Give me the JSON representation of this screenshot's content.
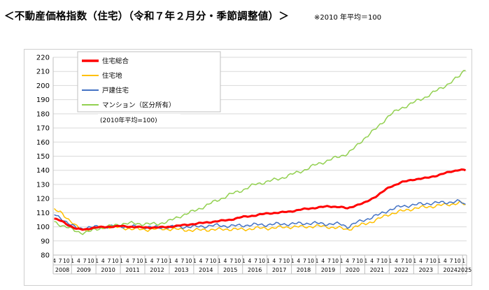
{
  "header": {
    "title": "＜不動産価格指数（住宅）（令和７年２月分・季節調整値）＞",
    "note": "※2010 年平均＝100"
  },
  "chart_data": {
    "type": "line",
    "inner_note": "(2010年平均=100)",
    "y_ticks": [
      "80",
      "90",
      "100",
      "110",
      "120",
      "130",
      "140",
      "150",
      "160",
      "170",
      "180",
      "190",
      "200",
      "210",
      "220"
    ],
    "ylim": [
      80,
      220
    ],
    "grid": "horizontal",
    "legend_position": "top-left",
    "month_tick_labels": [
      "4",
      "7",
      "10",
      "1"
    ],
    "x_year_labels": [
      "2008",
      "2009",
      "2010",
      "2011",
      "2012",
      "2013",
      "2014",
      "2015",
      "2016",
      "2017",
      "2018",
      "2019",
      "2020",
      "2021",
      "2022",
      "2023",
      "2024",
      "2025"
    ],
    "x_start": "2008-04",
    "x_end": "2025-02",
    "series": [
      {
        "name": "住宅総合",
        "color": "#ff0000",
        "width": 3.0,
        "keypoints": [
          [
            2008.25,
            106
          ],
          [
            2008.6,
            104
          ],
          [
            2008.9,
            101
          ],
          [
            2009.2,
            98.5
          ],
          [
            2009.5,
            98
          ],
          [
            2009.8,
            99
          ],
          [
            2010.0,
            99.5
          ],
          [
            2010.5,
            100
          ],
          [
            2011.0,
            100.5
          ],
          [
            2011.5,
            100
          ],
          [
            2012.0,
            99.5
          ],
          [
            2012.5,
            99.5
          ],
          [
            2013.0,
            100
          ],
          [
            2013.5,
            101
          ],
          [
            2014.0,
            102
          ],
          [
            2014.5,
            103
          ],
          [
            2015.0,
            104
          ],
          [
            2015.5,
            105
          ],
          [
            2016.0,
            107
          ],
          [
            2016.5,
            108
          ],
          [
            2017.0,
            109.5
          ],
          [
            2017.5,
            110
          ],
          [
            2018.0,
            111
          ],
          [
            2018.5,
            112.5
          ],
          [
            2019.0,
            113.5
          ],
          [
            2019.5,
            114.5
          ],
          [
            2020.0,
            114
          ],
          [
            2020.3,
            113
          ],
          [
            2020.6,
            115
          ],
          [
            2021.0,
            117
          ],
          [
            2021.5,
            122
          ],
          [
            2022.0,
            128
          ],
          [
            2022.5,
            131.5
          ],
          [
            2023.0,
            133.5
          ],
          [
            2023.5,
            134.5
          ],
          [
            2024.0,
            136.5
          ],
          [
            2024.5,
            139
          ],
          [
            2024.9,
            140.5
          ],
          [
            2025.1,
            140
          ]
        ]
      },
      {
        "name": "住宅地",
        "color": "#ffc000",
        "width": 1.5,
        "keypoints": [
          [
            2008.25,
            112
          ],
          [
            2008.6,
            110
          ],
          [
            2008.9,
            105
          ],
          [
            2009.2,
            100
          ],
          [
            2009.5,
            98
          ],
          [
            2009.8,
            98.5
          ],
          [
            2010.0,
            99
          ],
          [
            2010.5,
            100
          ],
          [
            2011.0,
            99.5
          ],
          [
            2011.5,
            98.5
          ],
          [
            2012.0,
            98
          ],
          [
            2012.5,
            98.5
          ],
          [
            2013.0,
            98.5
          ],
          [
            2013.5,
            98
          ],
          [
            2014.0,
            97.5
          ],
          [
            2014.5,
            98
          ],
          [
            2015.0,
            98
          ],
          [
            2015.5,
            98.5
          ],
          [
            2016.0,
            98
          ],
          [
            2016.5,
            99
          ],
          [
            2017.0,
            99
          ],
          [
            2017.5,
            99.5
          ],
          [
            2018.0,
            100
          ],
          [
            2018.5,
            100
          ],
          [
            2019.0,
            100.5
          ],
          [
            2019.5,
            100
          ],
          [
            2020.0,
            99
          ],
          [
            2020.3,
            98
          ],
          [
            2020.6,
            100
          ],
          [
            2021.0,
            102
          ],
          [
            2021.5,
            105
          ],
          [
            2022.0,
            109
          ],
          [
            2022.5,
            111
          ],
          [
            2023.0,
            113
          ],
          [
            2023.5,
            114
          ],
          [
            2024.0,
            115
          ],
          [
            2024.5,
            116
          ],
          [
            2024.9,
            117
          ],
          [
            2025.1,
            115.5
          ]
        ]
      },
      {
        "name": "戸建住宅",
        "color": "#4472c4",
        "width": 1.5,
        "keypoints": [
          [
            2008.25,
            109
          ],
          [
            2008.6,
            106
          ],
          [
            2008.9,
            102
          ],
          [
            2009.2,
            99
          ],
          [
            2009.5,
            99
          ],
          [
            2009.8,
            99.5
          ],
          [
            2010.0,
            100
          ],
          [
            2010.5,
            100
          ],
          [
            2011.0,
            100.5
          ],
          [
            2011.5,
            100
          ],
          [
            2012.0,
            100
          ],
          [
            2012.5,
            99.5
          ],
          [
            2013.0,
            100
          ],
          [
            2013.5,
            100
          ],
          [
            2014.0,
            100
          ],
          [
            2014.5,
            100.5
          ],
          [
            2015.0,
            101
          ],
          [
            2015.5,
            100.5
          ],
          [
            2016.0,
            101
          ],
          [
            2016.5,
            101.5
          ],
          [
            2017.0,
            101.5
          ],
          [
            2017.5,
            102
          ],
          [
            2018.0,
            102
          ],
          [
            2018.5,
            102.5
          ],
          [
            2019.0,
            102.5
          ],
          [
            2019.5,
            102
          ],
          [
            2020.0,
            102
          ],
          [
            2020.3,
            100
          ],
          [
            2020.6,
            102.5
          ],
          [
            2021.0,
            105
          ],
          [
            2021.5,
            108
          ],
          [
            2022.0,
            112
          ],
          [
            2022.5,
            114.5
          ],
          [
            2023.0,
            115.5
          ],
          [
            2023.5,
            116.5
          ],
          [
            2024.0,
            117
          ],
          [
            2024.5,
            117.5
          ],
          [
            2024.9,
            118
          ],
          [
            2025.1,
            115.5
          ]
        ]
      },
      {
        "name": "マンション（区分所有）",
        "color": "#92d050",
        "width": 1.5,
        "keypoints": [
          [
            2008.25,
            104
          ],
          [
            2008.6,
            101
          ],
          [
            2008.9,
            99
          ],
          [
            2009.2,
            97
          ],
          [
            2009.5,
            95.5
          ],
          [
            2009.8,
            97
          ],
          [
            2010.0,
            98.5
          ],
          [
            2010.5,
            100
          ],
          [
            2011.0,
            102
          ],
          [
            2011.5,
            102.5
          ],
          [
            2012.0,
            102
          ],
          [
            2012.5,
            102
          ],
          [
            2013.0,
            104
          ],
          [
            2013.5,
            108
          ],
          [
            2014.0,
            111
          ],
          [
            2014.5,
            115
          ],
          [
            2015.0,
            119
          ],
          [
            2015.5,
            123
          ],
          [
            2016.0,
            126
          ],
          [
            2016.5,
            130
          ],
          [
            2017.0,
            132
          ],
          [
            2017.5,
            134
          ],
          [
            2018.0,
            137
          ],
          [
            2018.5,
            140
          ],
          [
            2019.0,
            144
          ],
          [
            2019.5,
            147
          ],
          [
            2020.0,
            150
          ],
          [
            2020.3,
            152
          ],
          [
            2020.6,
            156
          ],
          [
            2021.0,
            163
          ],
          [
            2021.5,
            170
          ],
          [
            2022.0,
            179
          ],
          [
            2022.5,
            184
          ],
          [
            2023.0,
            188
          ],
          [
            2023.5,
            192
          ],
          [
            2024.0,
            197
          ],
          [
            2024.5,
            202
          ],
          [
            2024.9,
            207
          ],
          [
            2025.1,
            212
          ]
        ]
      }
    ]
  }
}
